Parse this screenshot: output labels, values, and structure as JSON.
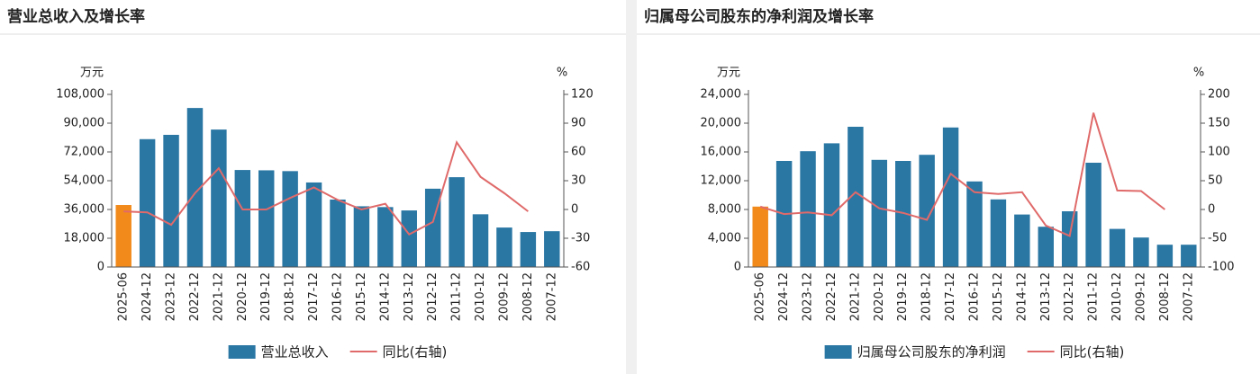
{
  "chart_data": [
    {
      "type": "bar",
      "title": "营业总收入及增长率",
      "y_unit": "万元",
      "y2_unit": "%",
      "categories": [
        "2025-06",
        "2024-12",
        "2023-12",
        "2022-12",
        "2021-12",
        "2020-12",
        "2019-12",
        "2018-12",
        "2017-12",
        "2016-12",
        "2015-12",
        "2014-12",
        "2013-12",
        "2012-12",
        "2011-12",
        "2010-12",
        "2009-12",
        "2008-12",
        "2007-12"
      ],
      "series": [
        {
          "name": "营业总收入",
          "type": "bar",
          "color": "#2a77a4",
          "colors": [
            "#f28a1b",
            "#2a77a4",
            "#2a77a4",
            "#2a77a4",
            "#2a77a4",
            "#2a77a4",
            "#2a77a4",
            "#2a77a4",
            "#2a77a4",
            "#2a77a4",
            "#2a77a4",
            "#2a77a4",
            "#2a77a4",
            "#2a77a4",
            "#2a77a4",
            "#2a77a4",
            "#2a77a4",
            "#2a77a4",
            "#2a77a4"
          ],
          "values": [
            38800,
            80000,
            82700,
            99500,
            86000,
            60700,
            60500,
            60000,
            52900,
            42200,
            38000,
            37500,
            35400,
            49000,
            56200,
            33000,
            24700,
            21900,
            22400
          ]
        },
        {
          "name": "同比(右轴)",
          "type": "line",
          "axis": "y2",
          "color": "#e06a6a",
          "values": [
            -2,
            -3,
            -16,
            17,
            43,
            0,
            0,
            12,
            23,
            10,
            0,
            6,
            -26,
            -13,
            70,
            34,
            17,
            -2,
            null
          ]
        }
      ],
      "ylim": [
        0,
        108000
      ],
      "yticks": [
        0,
        {
          "value": 18000,
          "label": "18,000"
        },
        {
          "value": 36000,
          "label": "36,000"
        },
        {
          "value": 54000,
          "label": "54,000"
        },
        {
          "value": 72000,
          "label": "72,000"
        },
        {
          "value": 90000,
          "label": "90,000"
        },
        {
          "value": 108000,
          "label": "108,000"
        }
      ],
      "y2lim": [
        -60,
        120
      ],
      "y2ticks": [
        -60,
        -30,
        0,
        30,
        60,
        90,
        120
      ]
    },
    {
      "type": "bar",
      "title": "归属母公司股东的净利润及增长率",
      "y_unit": "万元",
      "y2_unit": "%",
      "categories": [
        "2025-06",
        "2024-12",
        "2023-12",
        "2022-12",
        "2021-12",
        "2020-12",
        "2019-12",
        "2018-12",
        "2017-12",
        "2016-12",
        "2015-12",
        "2014-12",
        "2013-12",
        "2012-12",
        "2011-12",
        "2010-12",
        "2009-12",
        "2008-12",
        "2007-12"
      ],
      "series": [
        {
          "name": "归属母公司股东的净利润",
          "type": "bar",
          "color": "#2a77a4",
          "colors": [
            "#f28a1b",
            "#2a77a4",
            "#2a77a4",
            "#2a77a4",
            "#2a77a4",
            "#2a77a4",
            "#2a77a4",
            "#2a77a4",
            "#2a77a4",
            "#2a77a4",
            "#2a77a4",
            "#2a77a4",
            "#2a77a4",
            "#2a77a4",
            "#2a77a4",
            "#2a77a4",
            "#2a77a4",
            "#2a77a4",
            "#2a77a4"
          ],
          "values": [
            8400,
            14750,
            16100,
            17200,
            19500,
            14900,
            14750,
            15600,
            19400,
            11900,
            9400,
            7300,
            5600,
            7750,
            14500,
            5300,
            4100,
            3100,
            3100
          ]
        },
        {
          "name": "同比(右轴)",
          "type": "line",
          "axis": "y2",
          "color": "#e06a6a",
          "values": [
            5,
            -8,
            -5,
            -10,
            30,
            2,
            -6,
            -18,
            62,
            30,
            27,
            30,
            -28,
            -46,
            168,
            33,
            32,
            0,
            null
          ]
        }
      ],
      "ylim": [
        0,
        24000
      ],
      "yticks": [
        0,
        {
          "value": 4000,
          "label": "4,000"
        },
        {
          "value": 8000,
          "label": "8,000"
        },
        {
          "value": 12000,
          "label": "12,000"
        },
        {
          "value": 16000,
          "label": "16,000"
        },
        {
          "value": 20000,
          "label": "20,000"
        },
        {
          "value": 24000,
          "label": "24,000"
        }
      ],
      "y2lim": [
        -100,
        200
      ],
      "y2ticks": [
        -100,
        -50,
        0,
        50,
        100,
        150,
        200
      ]
    }
  ]
}
